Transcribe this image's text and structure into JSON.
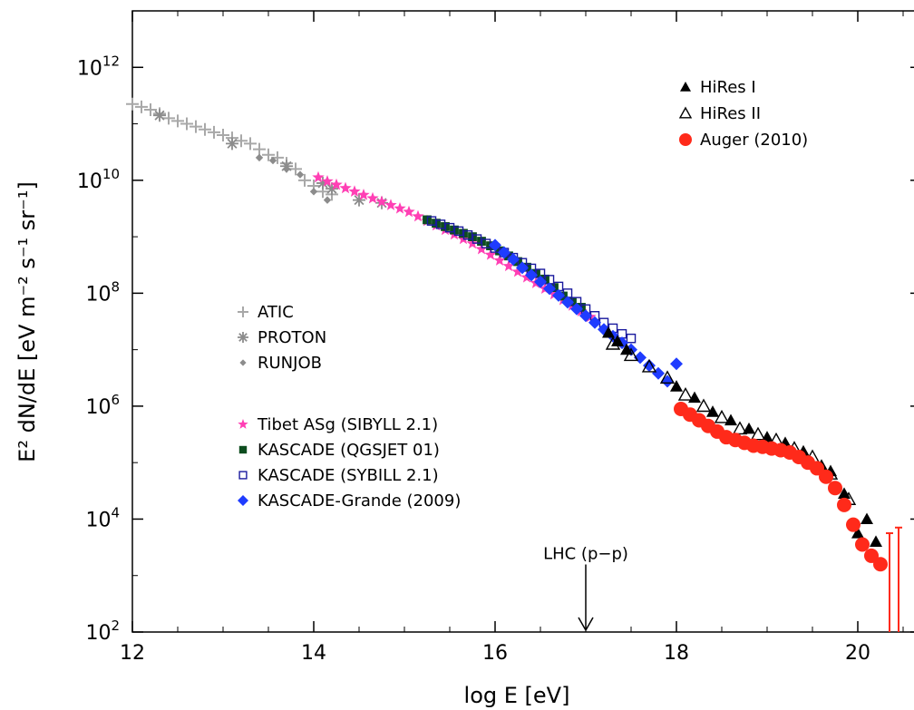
{
  "chart_data": {
    "type": "scatter",
    "xlabel": "log E [eV]",
    "ylabel": "E² dN/dE [eV m⁻² s⁻¹ sr⁻¹]",
    "xlim": [
      12,
      20.7
    ],
    "ylim_log10": [
      2,
      13
    ],
    "y_scale": "log",
    "x_ticks": [
      12,
      14,
      16,
      18,
      20
    ],
    "y_ticks_exp": [
      2,
      4,
      6,
      8,
      10,
      12
    ],
    "y_tick_base": "10",
    "annotation": {
      "text": "LHC (p−p)",
      "x": 17.0,
      "y_from_exp": 3.1,
      "y_to_exp": 2.0
    },
    "legend_left_top": "ATIC",
    "series": [
      {
        "name": "ATIC",
        "color": "#a8a8a8",
        "marker": "plus",
        "x": [
          12.0,
          12.1,
          12.2,
          12.3,
          12.4,
          12.5,
          12.6,
          12.7,
          12.8,
          12.9,
          13.0,
          13.1,
          13.2,
          13.3,
          13.4,
          13.5,
          13.6,
          13.7,
          13.8,
          13.9,
          14.0,
          14.1,
          14.2
        ],
        "y_exp": [
          11.35,
          11.3,
          11.25,
          11.18,
          11.1,
          11.05,
          11.0,
          10.95,
          10.9,
          10.85,
          10.8,
          10.75,
          10.7,
          10.65,
          10.55,
          10.45,
          10.4,
          10.3,
          10.2,
          10.0,
          9.9,
          9.8,
          9.75
        ]
      },
      {
        "name": "PROTON",
        "color": "#8c8c8c",
        "marker": "asterisk",
        "x": [
          12.3,
          13.1,
          13.7,
          14.1,
          14.2,
          14.5,
          14.75
        ],
        "y_exp": [
          11.15,
          10.65,
          10.25,
          9.95,
          9.85,
          9.65,
          9.6
        ]
      },
      {
        "name": "RUNJOB",
        "color": "#8c8c8c",
        "marker": "diamond-small",
        "x": [
          13.4,
          13.55,
          13.7,
          13.85,
          14.0,
          14.15
        ],
        "y_exp": [
          10.4,
          10.35,
          10.2,
          10.1,
          9.8,
          9.65
        ]
      },
      {
        "name": "Tibet ASg (SIBYLL 2.1)",
        "color": "#ff3fb4",
        "marker": "star",
        "x": [
          14.05,
          14.15,
          14.25,
          14.35,
          14.45,
          14.55,
          14.65,
          14.75,
          14.85,
          14.95,
          15.05,
          15.15,
          15.25,
          15.35,
          15.45,
          15.55,
          15.65,
          15.75,
          15.85,
          15.95,
          16.05,
          16.15,
          16.25,
          16.35,
          16.45,
          16.55,
          16.65,
          16.75,
          16.85,
          16.95,
          17.05
        ],
        "y_exp": [
          10.05,
          9.98,
          9.92,
          9.86,
          9.8,
          9.74,
          9.68,
          9.62,
          9.56,
          9.5,
          9.44,
          9.36,
          9.28,
          9.2,
          9.12,
          9.04,
          8.96,
          8.88,
          8.78,
          8.68,
          8.58,
          8.48,
          8.38,
          8.28,
          8.18,
          8.08,
          7.98,
          7.88,
          7.78,
          7.68,
          7.58
        ]
      },
      {
        "name": "KASCADE (QGSJET 01)",
        "color": "#0d4d1e",
        "marker": "square",
        "x": [
          15.25,
          15.35,
          15.45,
          15.55,
          15.65,
          15.75,
          15.85,
          15.95,
          16.05,
          16.15,
          16.25,
          16.35,
          16.45,
          16.55,
          16.65,
          16.75,
          16.85,
          16.95
        ],
        "y_exp": [
          9.3,
          9.24,
          9.18,
          9.12,
          9.06,
          9.0,
          8.92,
          8.84,
          8.75,
          8.66,
          8.56,
          8.46,
          8.35,
          8.25,
          8.1,
          7.95,
          7.85,
          7.75
        ]
      },
      {
        "name": "KASCADE (SYBILL 2.1)",
        "color": "#1a1a9e",
        "marker": "square-open",
        "x": [
          15.3,
          15.4,
          15.5,
          15.6,
          15.7,
          15.8,
          15.9,
          16.0,
          16.1,
          16.2,
          16.3,
          16.4,
          16.5,
          16.6,
          16.7,
          16.8,
          16.9,
          17.0,
          17.1,
          17.2,
          17.3,
          17.4,
          17.5
        ],
        "y_exp": [
          9.28,
          9.22,
          9.16,
          9.1,
          9.03,
          8.96,
          8.88,
          8.8,
          8.72,
          8.63,
          8.54,
          8.44,
          8.35,
          8.24,
          8.12,
          8.0,
          7.85,
          7.72,
          7.6,
          7.48,
          7.38,
          7.28,
          7.2
        ]
      },
      {
        "name": "KASCADE-Grande (2009)",
        "color": "#1f3cff",
        "marker": "diamond",
        "x": [
          16.0,
          16.1,
          16.2,
          16.3,
          16.4,
          16.5,
          16.6,
          16.7,
          16.8,
          16.9,
          17.0,
          17.1,
          17.2,
          17.3,
          17.4,
          17.5,
          17.6,
          17.7,
          17.8,
          17.9,
          18.0
        ],
        "y_exp": [
          8.85,
          8.72,
          8.6,
          8.45,
          8.32,
          8.2,
          8.08,
          7.96,
          7.84,
          7.72,
          7.6,
          7.48,
          7.36,
          7.24,
          7.12,
          7.0,
          6.86,
          6.72,
          6.58,
          6.44,
          6.75
        ]
      },
      {
        "name": "HiRes I",
        "color": "#000000",
        "marker": "triangle",
        "x": [
          17.25,
          17.35,
          17.45,
          18.0,
          18.2,
          18.4,
          18.6,
          18.8,
          19.0,
          19.2,
          19.4,
          19.6,
          19.7,
          19.85,
          20.0,
          20.1,
          20.2
        ],
        "y_exp": [
          7.3,
          7.15,
          7.0,
          6.35,
          6.15,
          5.9,
          5.75,
          5.6,
          5.45,
          5.35,
          5.2,
          4.95,
          4.85,
          4.45,
          3.75,
          4.0,
          3.6
        ]
      },
      {
        "name": "HiRes II",
        "color": "#000000",
        "marker": "triangle-open",
        "x": [
          17.3,
          17.5,
          17.7,
          17.9,
          18.1,
          18.3,
          18.5,
          18.7,
          18.9,
          19.1,
          19.3,
          19.5,
          19.7,
          19.9
        ],
        "y_exp": [
          7.1,
          6.9,
          6.7,
          6.5,
          6.2,
          6.0,
          5.8,
          5.6,
          5.5,
          5.4,
          5.25,
          5.1,
          4.8,
          4.35
        ]
      },
      {
        "name": "Auger (2010)",
        "color": "#ff2a1a",
        "marker": "circle",
        "x": [
          18.05,
          18.15,
          18.25,
          18.35,
          18.45,
          18.55,
          18.65,
          18.75,
          18.85,
          18.95,
          19.05,
          19.15,
          19.25,
          19.35,
          19.45,
          19.55,
          19.65,
          19.75,
          19.85,
          19.95,
          20.05,
          20.15,
          20.25,
          20.35,
          20.45
        ],
        "y_exp": [
          5.95,
          5.85,
          5.75,
          5.65,
          5.55,
          5.45,
          5.4,
          5.35,
          5.3,
          5.28,
          5.25,
          5.22,
          5.18,
          5.1,
          5.0,
          4.9,
          4.75,
          4.55,
          4.25,
          3.9,
          3.55,
          3.35,
          3.2,
          2.0,
          2.0
        ],
        "err_top": [
          null,
          null,
          null,
          null,
          null,
          null,
          null,
          null,
          null,
          null,
          null,
          null,
          null,
          null,
          null,
          null,
          null,
          null,
          null,
          null,
          null,
          null,
          null,
          3.75,
          3.85
        ]
      }
    ]
  },
  "legend_left": [
    {
      "name": "ATIC",
      "marker": "plus",
      "color": "#a8a8a8"
    },
    {
      "name": "PROTON",
      "marker": "asterisk",
      "color": "#8c8c8c"
    },
    {
      "name": "RUNJOB",
      "marker": "diamond-small",
      "color": "#8c8c8c"
    }
  ],
  "legend_mid": [
    {
      "name": "Tibet ASg (SIBYLL 2.1)",
      "marker": "star",
      "color": "#ff3fb4"
    },
    {
      "name": "KASCADE (QGSJET 01)",
      "marker": "square",
      "color": "#0d4d1e"
    },
    {
      "name": "KASCADE (SYBILL 2.1)",
      "marker": "square-open",
      "color": "#1a1a9e"
    },
    {
      "name": "KASCADE-Grande (2009)",
      "marker": "diamond",
      "color": "#1f3cff"
    }
  ],
  "legend_right": [
    {
      "name": "HiRes I",
      "marker": "triangle",
      "color": "#000000"
    },
    {
      "name": "HiRes II",
      "marker": "triangle-open",
      "color": "#000000"
    },
    {
      "name": "Auger (2010)",
      "marker": "circle",
      "color": "#ff2a1a"
    }
  ]
}
